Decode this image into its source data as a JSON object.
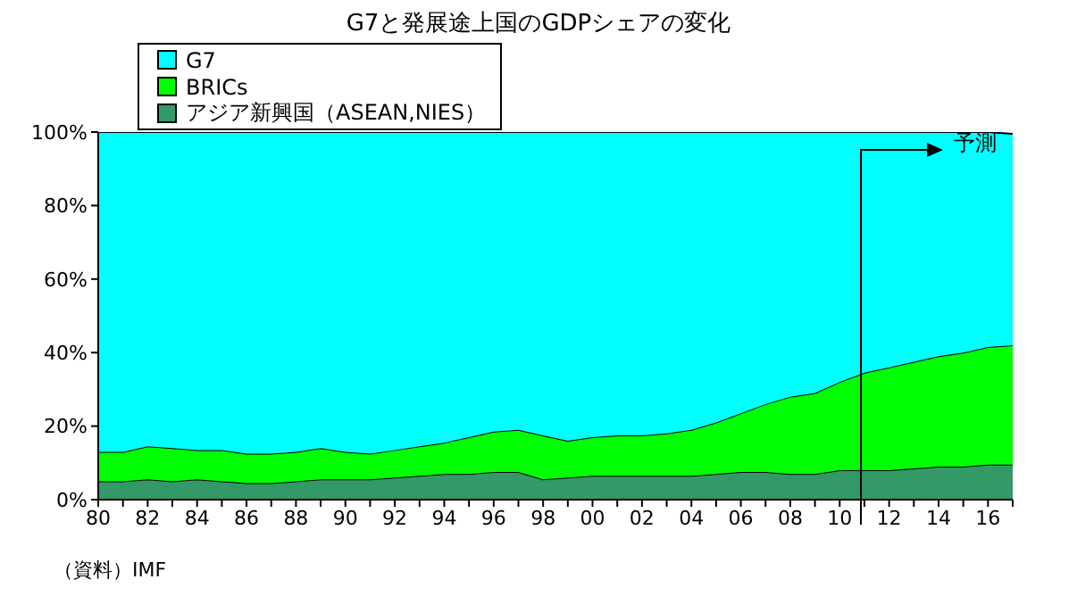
{
  "chart_data": {
    "type": "area",
    "title": "G7と発展途上国のGDPシェアの変化",
    "stacked": true,
    "x": [
      1980,
      1981,
      1982,
      1983,
      1984,
      1985,
      1986,
      1987,
      1988,
      1989,
      1990,
      1991,
      1992,
      1993,
      1994,
      1995,
      1996,
      1997,
      1998,
      1999,
      2000,
      2001,
      2002,
      2003,
      2004,
      2005,
      2006,
      2007,
      2008,
      2009,
      2010,
      2011,
      2012,
      2013,
      2014,
      2015,
      2016,
      2017
    ],
    "series": [
      {
        "name": "アジア新興国（ASEAN,NIES）",
        "color": "#339966",
        "values": [
          5,
          5,
          5.5,
          5,
          5.5,
          5,
          4.5,
          4.5,
          5,
          5.5,
          5.5,
          5.5,
          6,
          6.5,
          7,
          7,
          7.5,
          7.5,
          5.5,
          6,
          6.5,
          6.5,
          6.5,
          6.5,
          6.5,
          7,
          7.5,
          7.5,
          7,
          7,
          8,
          8,
          8,
          8.5,
          9,
          9,
          9.5,
          9.5
        ]
      },
      {
        "name": "BRICs",
        "color": "#00ff00",
        "values": [
          8,
          8,
          9,
          9,
          8,
          8.5,
          8,
          8,
          8,
          8.5,
          7.5,
          7,
          7.5,
          8,
          8.5,
          10,
          11,
          11.5,
          12,
          10,
          10.5,
          11,
          11,
          11.5,
          12.5,
          14,
          16,
          18.5,
          21,
          22,
          24,
          26.5,
          28,
          29,
          30,
          31,
          32,
          32.5
        ]
      },
      {
        "name": "G7",
        "color": "#00ffff",
        "values": [
          87,
          87,
          85.5,
          86,
          86.5,
          86.5,
          87.5,
          87.5,
          87,
          86,
          87,
          87.5,
          86.5,
          85.5,
          84.5,
          83,
          81.5,
          81,
          82.5,
          84,
          83,
          82.5,
          82.5,
          82,
          81,
          79,
          76.5,
          74,
          72,
          71,
          68,
          65.5,
          64,
          62.5,
          61,
          60,
          58.5,
          57.5
        ]
      }
    ],
    "xlim": [
      1980,
      2017
    ],
    "xticks": [
      {
        "value": 1980,
        "label": "80"
      },
      {
        "value": 1981,
        "label": null
      },
      {
        "value": 1982,
        "label": "82"
      },
      {
        "value": 1983,
        "label": null
      },
      {
        "value": 1984,
        "label": "84"
      },
      {
        "value": 1985,
        "label": null
      },
      {
        "value": 1986,
        "label": "86"
      },
      {
        "value": 1987,
        "label": null
      },
      {
        "value": 1988,
        "label": "88"
      },
      {
        "value": 1989,
        "label": null
      },
      {
        "value": 1990,
        "label": "90"
      },
      {
        "value": 1991,
        "label": null
      },
      {
        "value": 1992,
        "label": "92"
      },
      {
        "value": 1993,
        "label": null
      },
      {
        "value": 1994,
        "label": "94"
      },
      {
        "value": 1995,
        "label": null
      },
      {
        "value": 1996,
        "label": "96"
      },
      {
        "value": 1997,
        "label": null
      },
      {
        "value": 1998,
        "label": "98"
      },
      {
        "value": 1999,
        "label": null
      },
      {
        "value": 2000,
        "label": "00"
      },
      {
        "value": 2001,
        "label": null
      },
      {
        "value": 2002,
        "label": "02"
      },
      {
        "value": 2003,
        "label": null
      },
      {
        "value": 2004,
        "label": "04"
      },
      {
        "value": 2005,
        "label": null
      },
      {
        "value": 2006,
        "label": "06"
      },
      {
        "value": 2007,
        "label": null
      },
      {
        "value": 2008,
        "label": "08"
      },
      {
        "value": 2009,
        "label": null
      },
      {
        "value": 2010,
        "label": "10"
      },
      {
        "value": 2011,
        "label": null
      },
      {
        "value": 2012,
        "label": "12"
      },
      {
        "value": 2013,
        "label": null
      },
      {
        "value": 2014,
        "label": "14"
      },
      {
        "value": 2015,
        "label": null
      },
      {
        "value": 2016,
        "label": "16"
      },
      {
        "value": 2017,
        "label": null
      }
    ],
    "ylim": [
      0,
      100
    ],
    "yticks": [
      {
        "value": 0,
        "label": "0%"
      },
      {
        "value": 20,
        "label": "20%"
      },
      {
        "value": 40,
        "label": "40%"
      },
      {
        "value": 60,
        "label": "60%"
      },
      {
        "value": 80,
        "label": "80%"
      },
      {
        "value": 100,
        "label": "100%"
      }
    ],
    "legend": "top left",
    "annotations": [
      "予測",
      "（資料）IMF"
    ]
  }
}
